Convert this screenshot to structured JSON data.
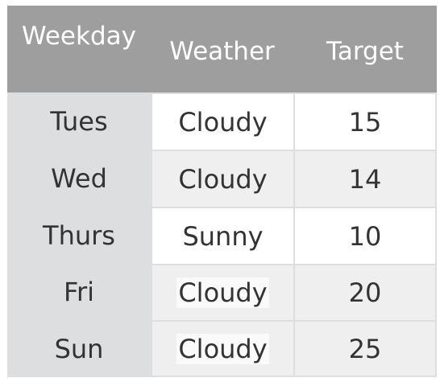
{
  "table": {
    "headers": [
      "Weekday",
      "Weather",
      "Target"
    ],
    "rows": [
      {
        "weekday": "Tues",
        "weather": "Cloudy",
        "target": "15"
      },
      {
        "weekday": "Wed",
        "weather": "Cloudy",
        "target": "14"
      },
      {
        "weekday": "Thurs",
        "weather": "Sunny",
        "target": "10"
      },
      {
        "weekday": "Fri",
        "weather": "Cloudy",
        "target": "20"
      },
      {
        "weekday": "Sun",
        "weather": "Cloudy",
        "target": "25"
      }
    ]
  },
  "colors": {
    "header_bg": "#9e9e9e",
    "weekday_column_bg": "#dcdedf",
    "alt_row_bg": "#efefef",
    "border": "#dedede"
  }
}
